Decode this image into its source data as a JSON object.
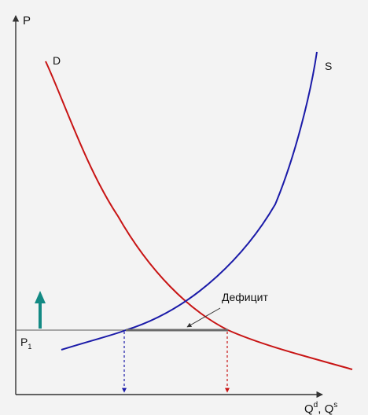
{
  "axes": {
    "y_label": "P",
    "x_label_main_1": "Q",
    "x_label_sup_1": "d",
    "x_label_sep": ", ",
    "x_label_main_2": "Q",
    "x_label_sup_2": "s"
  },
  "curves": {
    "demand_label": "D",
    "supply_label": "S",
    "demand_color": "#c81414",
    "supply_color": "#1a1aa8"
  },
  "price_level": {
    "label_main": "P",
    "label_sub": "1"
  },
  "shortage": {
    "label": "Дефицит"
  },
  "price_up_arrow": {
    "color": "#138a84"
  },
  "colors": {
    "axis": "#333333",
    "price_line": "#777777",
    "gap_segment": "#6b6b6b",
    "background": "#f3f3f3"
  }
}
